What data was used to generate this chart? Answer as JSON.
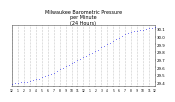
{
  "title": "Milwaukee Barometric Pressure\nper Minute\n(24 Hours)",
  "title_fontsize": 3.5,
  "dot_color": "#0000EE",
  "dot_size": 0.8,
  "background_color": "#ffffff",
  "plot_bg_color": "#ffffff",
  "ylim": [
    29.35,
    30.15
  ],
  "xlim": [
    0,
    1440
  ],
  "ytick_labels": [
    "29.4",
    "29.5",
    "29.6",
    "29.7",
    "29.8",
    "29.9",
    "30.0",
    "30.1"
  ],
  "ytick_values": [
    29.4,
    29.5,
    29.6,
    29.7,
    29.8,
    29.9,
    30.0,
    30.1
  ],
  "xtick_positions": [
    0,
    60,
    120,
    180,
    240,
    300,
    360,
    420,
    480,
    540,
    600,
    660,
    720,
    780,
    840,
    900,
    960,
    1020,
    1080,
    1140,
    1200,
    1260,
    1320,
    1380,
    1440
  ],
  "xtick_labels": [
    "12",
    "1",
    "2",
    "3",
    "4",
    "5",
    "6",
    "7",
    "8",
    "9",
    "10",
    "11",
    "12",
    "1",
    "2",
    "3",
    "4",
    "5",
    "6",
    "7",
    "8",
    "9",
    "10",
    "11",
    "12"
  ],
  "grid_color": "#999999",
  "grid_style": ":",
  "data_x": [
    0,
    30,
    60,
    90,
    120,
    150,
    180,
    210,
    240,
    270,
    300,
    330,
    360,
    390,
    420,
    450,
    480,
    510,
    540,
    570,
    600,
    630,
    660,
    690,
    720,
    750,
    780,
    810,
    840,
    870,
    900,
    930,
    960,
    990,
    1020,
    1050,
    1080,
    1110,
    1140,
    1170,
    1200,
    1230,
    1260,
    1290,
    1320,
    1350,
    1380,
    1410,
    1440
  ],
  "data_y": [
    29.38,
    29.39,
    29.39,
    29.4,
    29.4,
    29.41,
    29.42,
    29.43,
    29.44,
    29.45,
    29.47,
    29.48,
    29.5,
    29.51,
    29.53,
    29.55,
    29.57,
    29.59,
    29.61,
    29.63,
    29.65,
    29.67,
    29.69,
    29.71,
    29.73,
    29.75,
    29.77,
    29.79,
    29.81,
    29.83,
    29.86,
    29.88,
    29.9,
    29.92,
    29.95,
    29.97,
    29.99,
    30.01,
    30.03,
    30.05,
    30.06,
    30.07,
    30.08,
    30.09,
    30.09,
    30.1,
    30.11,
    30.12,
    30.13
  ]
}
